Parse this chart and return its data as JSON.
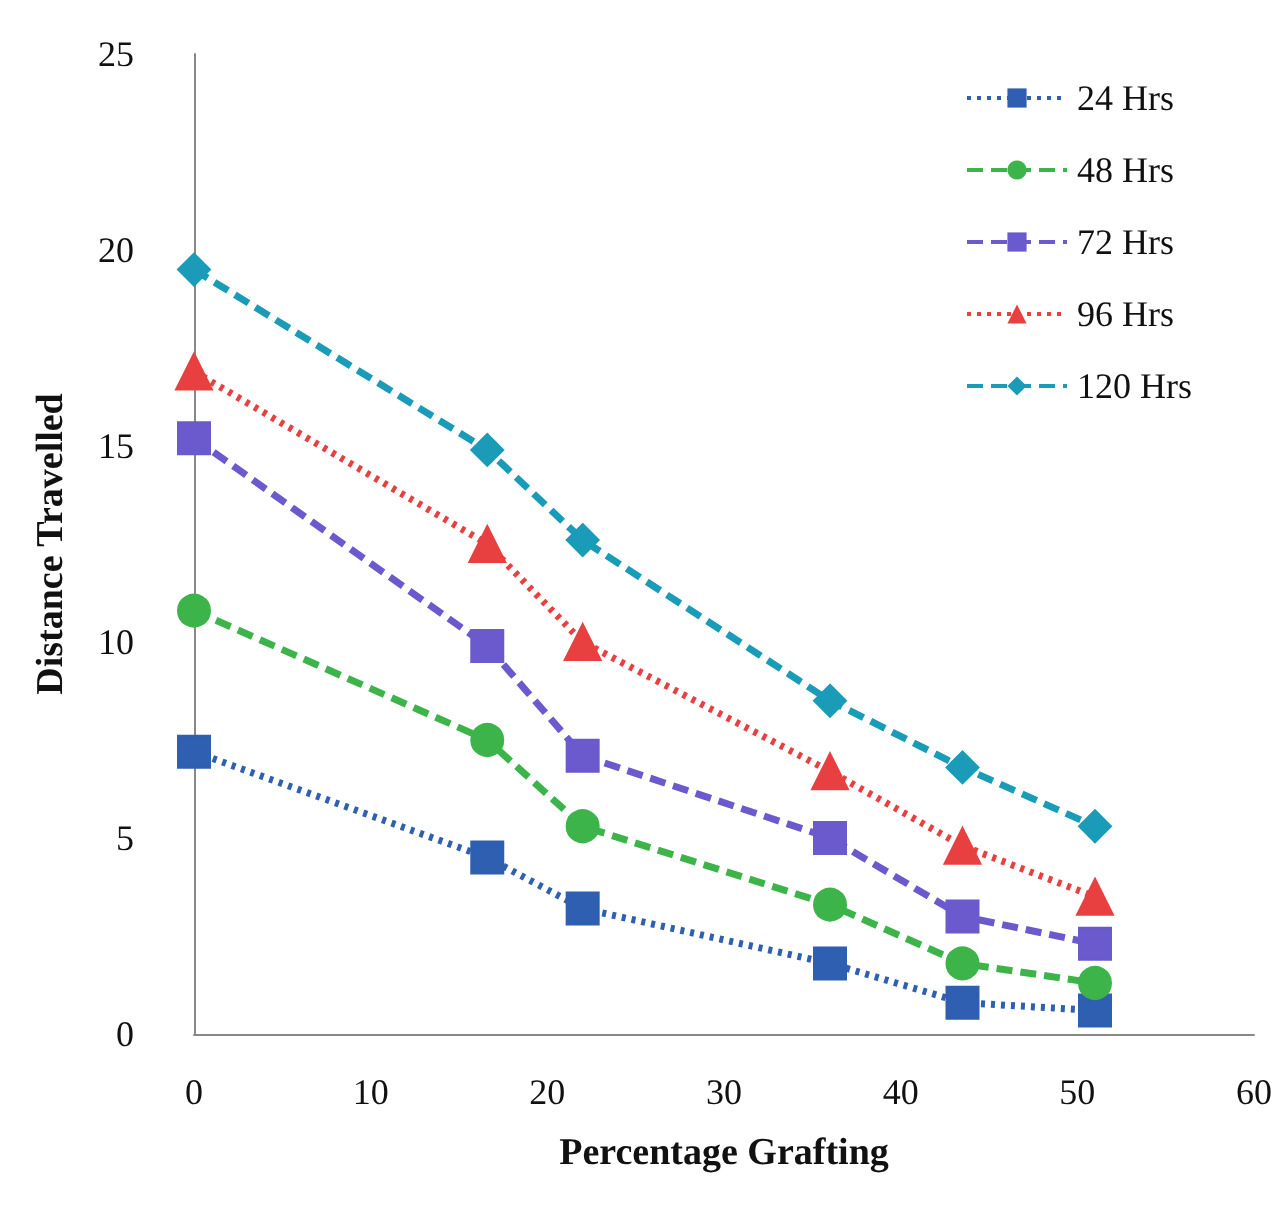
{
  "chart_data": {
    "type": "line",
    "xlabel": "Percentage Grafting",
    "ylabel": "Distance Travelled",
    "x": [
      0,
      16.6,
      22,
      36,
      43.5,
      51
    ],
    "series": [
      {
        "name": "24 Hrs",
        "color": "#2e5fb0",
        "marker": "square",
        "line_style": "dotted",
        "values": [
          7.2,
          4.5,
          3.2,
          1.8,
          0.8,
          0.6
        ]
      },
      {
        "name": "48 Hrs",
        "color": "#3cb44a",
        "marker": "circle",
        "line_style": "dashed",
        "values": [
          10.8,
          7.5,
          5.3,
          3.3,
          1.8,
          1.3
        ]
      },
      {
        "name": "72 Hrs",
        "color": "#6a5acd",
        "marker": "square",
        "line_style": "dashed",
        "values": [
          15.2,
          9.9,
          7.1,
          5.0,
          3.0,
          2.3
        ]
      },
      {
        "name": "96 Hrs",
        "color": "#e84040",
        "marker": "triangle",
        "line_style": "dotted",
        "values": [
          16.9,
          12.5,
          10.0,
          6.7,
          4.8,
          3.5
        ]
      },
      {
        "name": "120 Hrs",
        "color": "#1a9cb8",
        "marker": "diamond",
        "line_style": "dashed",
        "values": [
          19.5,
          14.9,
          12.6,
          8.5,
          6.8,
          5.3
        ]
      }
    ],
    "xlim": [
      0,
      60
    ],
    "xticks": [
      0,
      10,
      20,
      30,
      40,
      50,
      60
    ],
    "ylim": [
      0,
      25
    ],
    "yticks": [
      0,
      5,
      10,
      15,
      20,
      25
    ],
    "grid": false,
    "legend": "top right"
  }
}
